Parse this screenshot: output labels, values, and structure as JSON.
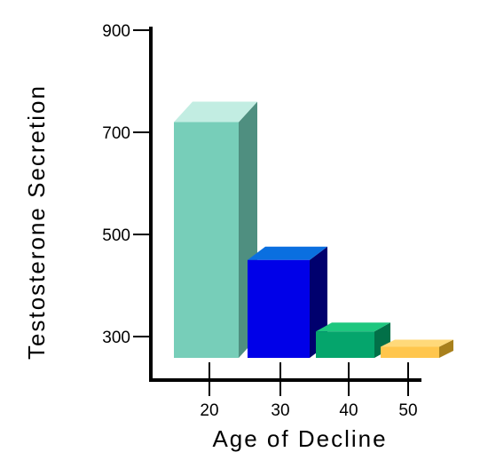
{
  "chart_data": {
    "type": "bar",
    "title": "",
    "xlabel": "Age of Decline",
    "ylabel": "Testosterone Secretion",
    "categories": [
      "20",
      "30",
      "40",
      "50"
    ],
    "values": [
      720,
      450,
      310,
      280
    ],
    "ylim": [
      200,
      900
    ],
    "yticks": [
      "900",
      "700",
      "500",
      "300"
    ],
    "ytick_values": [
      900,
      700,
      500,
      300
    ],
    "grid": false,
    "style": "3d",
    "colors": [
      {
        "front": "#77ceb9",
        "side": "#4f8f80",
        "top": "#c2ede2"
      },
      {
        "front": "#0000e8",
        "side": "#00006e",
        "top": "#0a6fe0"
      },
      {
        "front": "#05a56c",
        "side": "#027048",
        "top": "#1ec77f"
      },
      {
        "front": "#ffc64d",
        "side": "#a8801c",
        "top": "#ffd97a"
      }
    ]
  }
}
